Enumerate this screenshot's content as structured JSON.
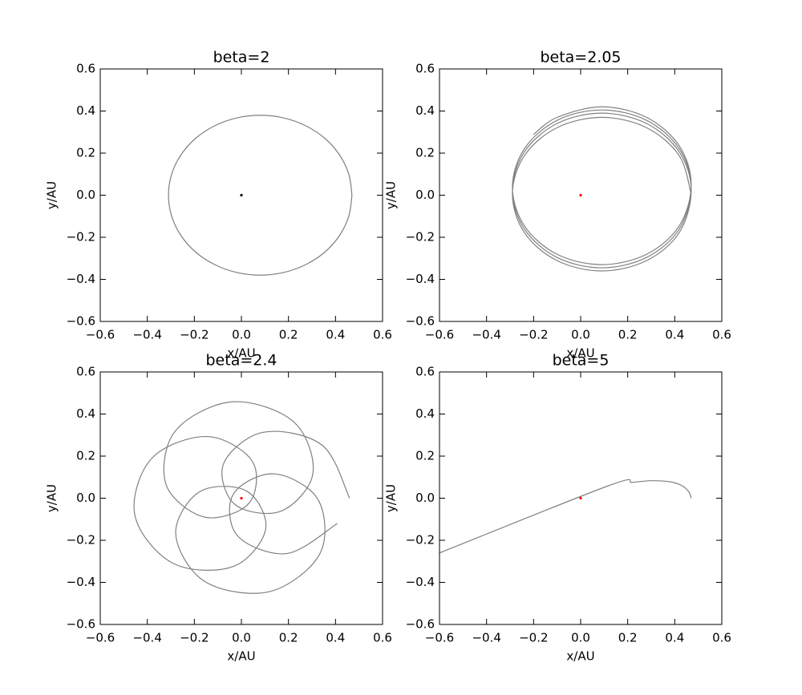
{
  "chart_data": [
    {
      "type": "line",
      "title": "beta=2",
      "xlabel": "x/AU",
      "ylabel": "y/AU",
      "xlim": [
        -0.6,
        0.6
      ],
      "ylim": [
        -0.6,
        0.6
      ],
      "xticks": [
        {
          "value": -0.6,
          "label": "−0.6"
        },
        {
          "value": -0.4,
          "label": "−0.4"
        },
        {
          "value": -0.2,
          "label": "−0.2"
        },
        {
          "value": 0,
          "label": "0.0"
        },
        0.2,
        0.4,
        0.6
      ],
      "yticks": [
        {
          "value": -0.6,
          "label": "−0.6"
        },
        {
          "value": -0.4,
          "label": "−0.4"
        },
        {
          "value": -0.2,
          "label": "−0.2"
        },
        {
          "value": 0,
          "label": "0.0"
        },
        0.2,
        0.4,
        0.6
      ],
      "series": [
        {
          "mode": "line",
          "color": "#808080",
          "x": [
            0.47,
            0.457,
            0.418,
            0.356,
            0.275,
            0.181,
            0.08,
            -0.021,
            -0.115,
            -0.196,
            -0.258,
            -0.297,
            -0.31,
            -0.297,
            -0.258,
            -0.196,
            -0.115,
            -0.021,
            0.08,
            0.181,
            0.275,
            0.356,
            0.418,
            0.457,
            0.47
          ],
          "y": [
            0,
            0.098,
            0.19,
            0.269,
            0.329,
            0.367,
            0.38,
            0.367,
            0.329,
            0.269,
            0.19,
            0.098,
            0,
            -0.098,
            -0.19,
            -0.269,
            -0.329,
            -0.367,
            -0.38,
            -0.367,
            -0.329,
            -0.269,
            -0.19,
            -0.098,
            0
          ]
        },
        {
          "mode": "marker",
          "color": "#000000",
          "x": [
            0
          ],
          "y": [
            0
          ]
        }
      ]
    },
    {
      "type": "line",
      "title": "beta=2.05",
      "xlabel": "x/AU",
      "ylabel": "y/AU",
      "xlim": [
        -0.6,
        0.6
      ],
      "ylim": [
        -0.6,
        0.6
      ],
      "xticks": [
        {
          "value": -0.6,
          "label": "−0.6"
        },
        {
          "value": -0.4,
          "label": "−0.4"
        },
        {
          "value": -0.2,
          "label": "−0.2"
        },
        {
          "value": 0,
          "label": "0.0"
        },
        0.2,
        0.4,
        0.6
      ],
      "yticks": [
        {
          "value": -0.6,
          "label": "−0.6"
        },
        {
          "value": -0.4,
          "label": "−0.4"
        },
        {
          "value": -0.2,
          "label": "−0.2"
        },
        {
          "value": 0,
          "label": "0.0"
        },
        0.2,
        0.4,
        0.6
      ],
      "series": [
        {
          "mode": "line",
          "color": "#808080",
          "x": [
            0.47,
            0.419,
            0.28,
            0.09,
            -0.1,
            -0.239,
            -0.29,
            -0.239,
            -0.1,
            0.09,
            0.28,
            0.419,
            0.47,
            0.419,
            0.28,
            0.09,
            -0.1,
            -0.239,
            -0.29,
            -0.239,
            -0.1,
            0.09,
            0.28,
            0.419,
            0.47,
            0.419,
            0.28,
            0.09,
            -0.1,
            -0.239,
            -0.29,
            -0.239,
            -0.1,
            0.09,
            0.28,
            0.419,
            0.47,
            0.419,
            0.28,
            0.09,
            -0.1,
            -0.201
          ],
          "y": [
            0.005,
            0.188,
            0.321,
            0.37,
            0.321,
            0.188,
            0.005,
            -0.178,
            -0.311,
            -0.36,
            -0.311,
            -0.178,
            0.023,
            0.206,
            0.341,
            0.39,
            0.341,
            0.206,
            0.023,
            -0.161,
            -0.296,
            -0.345,
            -0.296,
            -0.161,
            0.038,
            0.221,
            0.356,
            0.405,
            0.356,
            0.221,
            0.038,
            -0.146,
            -0.281,
            -0.33,
            -0.281,
            -0.146,
            0.05,
            0.235,
            0.37,
            0.42,
            0.37,
            0.288
          ]
        },
        {
          "mode": "marker",
          "color": "#ff0000",
          "x": [
            0
          ],
          "y": [
            0
          ]
        }
      ]
    },
    {
      "type": "line",
      "title": "beta=2.4",
      "xlabel": "x/AU",
      "ylabel": "y/AU",
      "xlim": [
        -0.6,
        0.6
      ],
      "ylim": [
        -0.6,
        0.6
      ],
      "xticks": [
        {
          "value": -0.6,
          "label": "−0.6"
        },
        {
          "value": -0.4,
          "label": "−0.4"
        },
        {
          "value": -0.2,
          "label": "−0.2"
        },
        {
          "value": 0,
          "label": "0.0"
        },
        0.2,
        0.4,
        0.6
      ],
      "yticks": [
        {
          "value": -0.6,
          "label": "−0.6"
        },
        {
          "value": -0.4,
          "label": "−0.4"
        },
        {
          "value": -0.2,
          "label": "−0.2"
        },
        {
          "value": 0,
          "label": "0.0"
        },
        0.2,
        0.4,
        0.6
      ],
      "series": [
        {
          "mode": "line",
          "color": "#808080",
          "x": [
            0.46,
            0.342,
            0.092,
            -0.076,
            -0.027,
            0.169,
            0.304,
            0.222,
            -0.04,
            -0.281,
            -0.32,
            -0.156,
            0.032,
            0.047,
            -0.145,
            -0.381,
            -0.453,
            -0.293,
            -0.036,
            0.103,
            0.022,
            -0.177,
            -0.279,
            -0.155,
            0.119,
            0.333,
            0.326,
            0.138,
            -0.035,
            -0.016,
            0.193,
            0.408
          ],
          "y": [
            0,
            0.253,
            0.313,
            0.163,
            -0.03,
            -0.061,
            0.118,
            0.363,
            0.458,
            0.319,
            0.064,
            -0.09,
            -0.024,
            0.174,
            0.293,
            0.189,
            -0.08,
            -0.308,
            -0.325,
            -0.147,
            0.034,
            0.031,
            -0.17,
            -0.396,
            -0.444,
            -0.265,
            -0.007,
            0.116,
            0.018,
            -0.179,
            -0.263,
            -0.12
          ]
        },
        {
          "mode": "marker",
          "color": "#ff0000",
          "x": [
            0
          ],
          "y": [
            0
          ]
        }
      ]
    },
    {
      "type": "line",
      "title": "beta=5",
      "xlabel": "x/AU",
      "ylabel": "y/AU",
      "xlim": [
        -0.6,
        0.6
      ],
      "ylim": [
        -0.6,
        0.6
      ],
      "xticks": [
        {
          "value": -0.6,
          "label": "−0.6"
        },
        {
          "value": -0.4,
          "label": "−0.4"
        },
        {
          "value": -0.2,
          "label": "−0.2"
        },
        {
          "value": 0,
          "label": "0.0"
        },
        0.2,
        0.4,
        0.6
      ],
      "yticks": [
        {
          "value": -0.6,
          "label": "−0.6"
        },
        {
          "value": -0.4,
          "label": "−0.4"
        },
        {
          "value": -0.2,
          "label": "−0.2"
        },
        {
          "value": 0,
          "label": "0.0"
        },
        0.2,
        0.4,
        0.6
      ],
      "series": [
        {
          "mode": "line",
          "color": "#808080",
          "x": [
            0.47,
            0.46,
            0.43,
            0.38,
            0.3,
            0.22,
            0.12,
            -0.6
          ],
          "y": [
            0,
            0.03,
            0.06,
            0.078,
            0.083,
            0.075,
            0.06,
            -0.26
          ]
        },
        {
          "mode": "marker",
          "color": "#ff0000",
          "x": [
            0
          ],
          "y": [
            0
          ]
        }
      ]
    }
  ]
}
